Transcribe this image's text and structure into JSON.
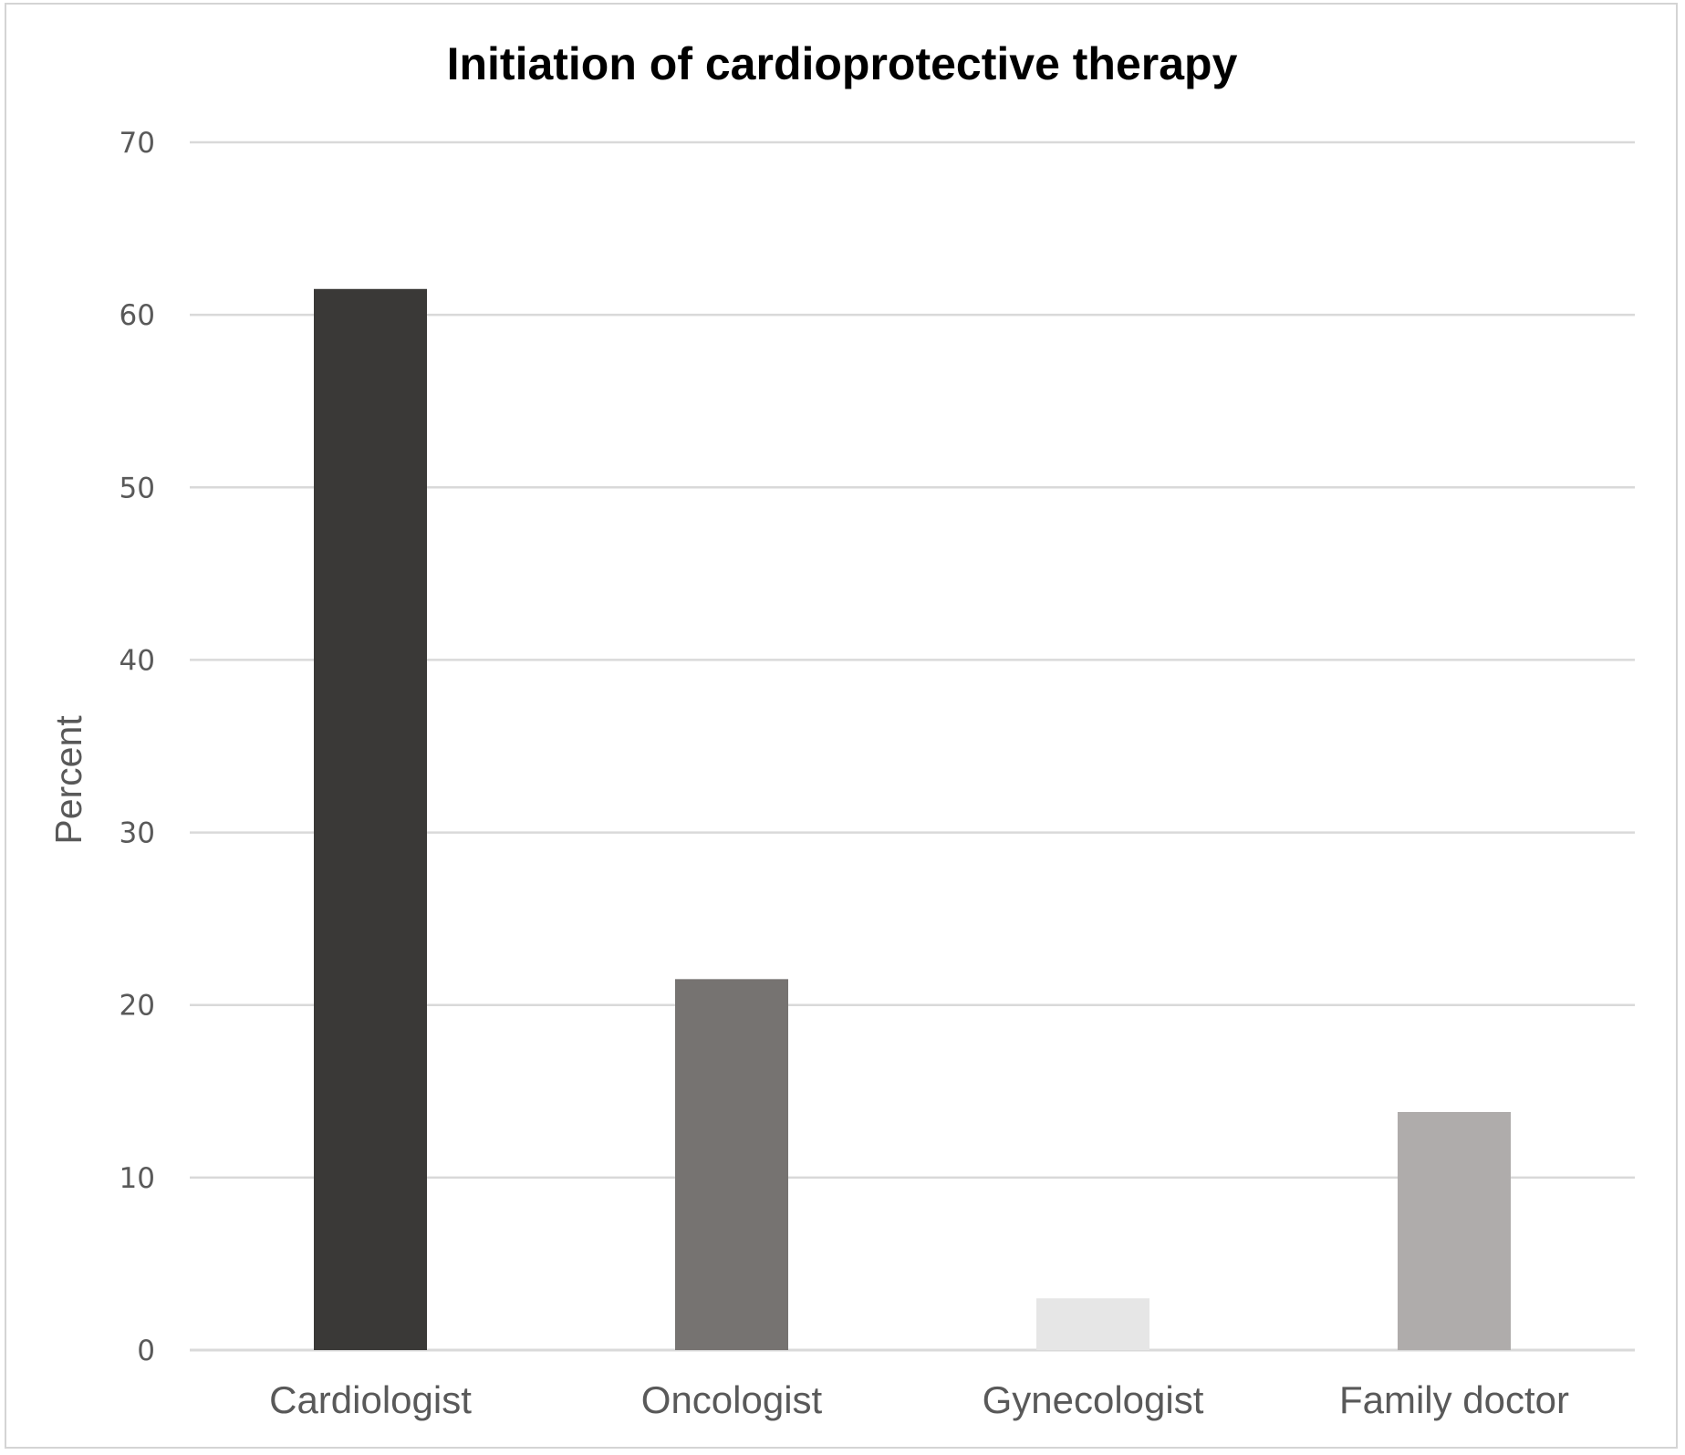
{
  "chart_data": {
    "type": "bar",
    "title": "Initiation of cardioprotective therapy",
    "xlabel": "",
    "ylabel": "Percent",
    "categories": [
      "Cardiologist",
      "Oncologist",
      "Gynecologist",
      "Family doctor"
    ],
    "values": [
      61.5,
      21.5,
      3,
      13.8
    ],
    "bar_colors": [
      "#3a3937",
      "#767371",
      "#e6e6e6",
      "#afacab"
    ],
    "ylim": [
      0,
      70
    ],
    "yticks": [
      0,
      10,
      20,
      30,
      40,
      50,
      60,
      70
    ],
    "ytick_labels": [
      "0",
      "10",
      "20",
      "30",
      "40",
      "50",
      "60",
      "70"
    ],
    "grid": true,
    "legend": "none"
  }
}
